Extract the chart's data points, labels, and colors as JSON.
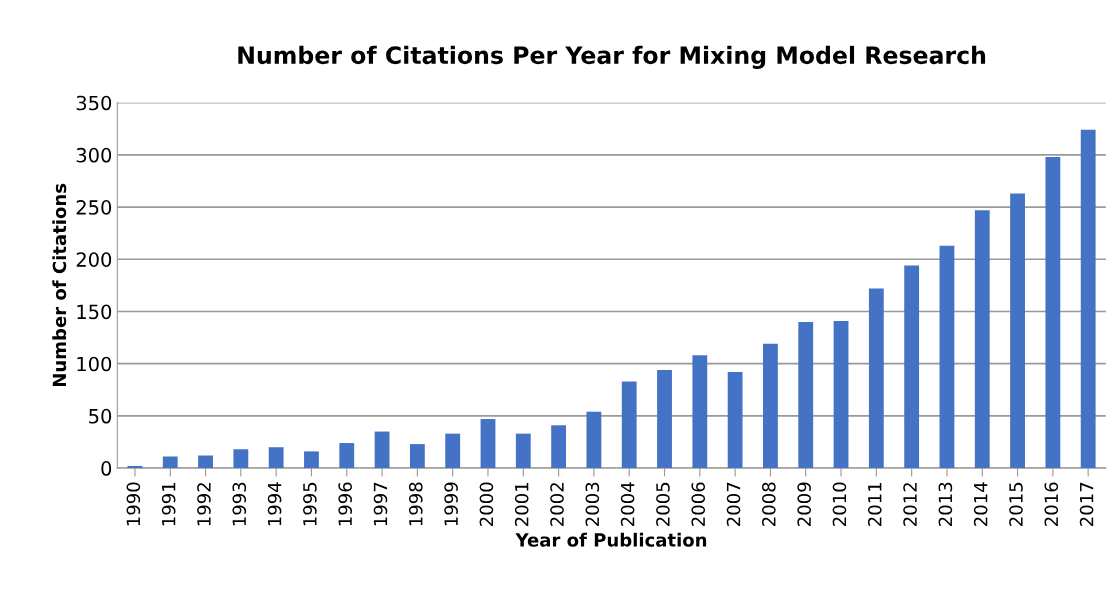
{
  "chart_data": {
    "type": "bar",
    "title": "Number of Citations Per Year for Mixing Model Research",
    "xlabel": "Year of Publication",
    "ylabel": "Number of Citations",
    "categories": [
      "1990",
      "1991",
      "1992",
      "1993",
      "1994",
      "1995",
      "1996",
      "1997",
      "1998",
      "1999",
      "2000",
      "2001",
      "2002",
      "2003",
      "2004",
      "2005",
      "2006",
      "2007",
      "2008",
      "2009",
      "2010",
      "2011",
      "2012",
      "2013",
      "2014",
      "2015",
      "2016",
      "2017"
    ],
    "values": [
      2,
      11,
      12,
      18,
      20,
      16,
      24,
      35,
      23,
      33,
      47,
      33,
      41,
      54,
      83,
      94,
      108,
      92,
      119,
      140,
      141,
      172,
      194,
      213,
      247,
      263,
      298,
      324
    ],
    "color": "#4472c4",
    "ylim": [
      0,
      350
    ],
    "yticks": [
      0,
      50,
      100,
      150,
      200,
      250,
      300,
      350
    ],
    "grid": "y"
  }
}
